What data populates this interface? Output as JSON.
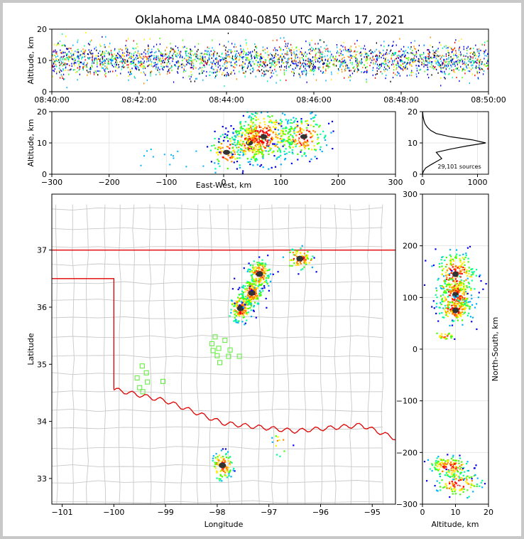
{
  "chart_data": [
    {
      "type": "heatmap",
      "title": "Oklahoma LMA 0840-0850 UTC March 17, 2021",
      "panel": "time-altitude",
      "xlabel": "",
      "ylabel": "Altitude, km",
      "x_ticks": [
        "08:40:00",
        "08:42:00",
        "08:44:00",
        "08:46:00",
        "08:48:00",
        "08:50:00"
      ],
      "y_ticks": [
        0,
        10,
        20
      ],
      "ylim": [
        0,
        20
      ],
      "typical_altitude_km": 10
    },
    {
      "type": "heatmap",
      "panel": "east-west-altitude",
      "xlabel": "East-West, km",
      "ylabel": "Altitude, km",
      "x_ticks": [
        -300,
        -200,
        -100,
        0,
        100,
        200,
        300
      ],
      "xlim": [
        -300,
        300
      ],
      "y_ticks": [
        0,
        10,
        20
      ],
      "ylim": [
        0,
        20
      ],
      "clusters": [
        {
          "x": 5,
          "z": 7
        },
        {
          "x": 45,
          "z": 10
        },
        {
          "x": 70,
          "z": 12
        },
        {
          "x": 140,
          "z": 12
        }
      ]
    },
    {
      "type": "line",
      "panel": "altitude-histogram",
      "annotation": "29,101 sources",
      "x_ticks": [
        0,
        1000
      ],
      "xlim": [
        0,
        1200
      ],
      "y_ticks": [
        0,
        10,
        20
      ],
      "ylim": [
        0,
        20
      ],
      "points": [
        [
          0,
          0
        ],
        [
          20,
          1
        ],
        [
          60,
          2
        ],
        [
          150,
          3
        ],
        [
          250,
          4
        ],
        [
          350,
          5
        ],
        [
          300,
          6
        ],
        [
          250,
          7
        ],
        [
          500,
          8
        ],
        [
          800,
          9
        ],
        [
          1150,
          10
        ],
        [
          900,
          11
        ],
        [
          500,
          12
        ],
        [
          250,
          13
        ],
        [
          150,
          14
        ],
        [
          90,
          15
        ],
        [
          50,
          16
        ],
        [
          30,
          17
        ],
        [
          15,
          18
        ],
        [
          8,
          19
        ],
        [
          4,
          20
        ]
      ]
    },
    {
      "type": "scatter",
      "panel": "plan-view-map",
      "xlabel": "Longitude",
      "ylabel": "Latitude",
      "x_ticks": [
        -101,
        -100,
        -99,
        -98,
        -97,
        -96,
        -95
      ],
      "xlim": [
        -101.2,
        -94.55
      ],
      "y_ticks": [
        33,
        34,
        35,
        36,
        37
      ],
      "ylim": [
        32.55,
        37.98
      ],
      "stations": [
        [
          -98.04,
          35.48
        ],
        [
          -98.1,
          35.36
        ],
        [
          -97.97,
          35.28
        ],
        [
          -98.08,
          35.24
        ],
        [
          -97.85,
          35.42
        ],
        [
          -97.75,
          35.25
        ],
        [
          -97.78,
          35.14
        ],
        [
          -97.57,
          35.14
        ],
        [
          -98.0,
          35.15
        ],
        [
          -97.95,
          35.03
        ],
        [
          -99.45,
          34.97
        ],
        [
          -99.37,
          34.85
        ],
        [
          -99.55,
          34.76
        ],
        [
          -99.35,
          34.69
        ],
        [
          -99.05,
          34.7
        ],
        [
          -99.5,
          34.59
        ],
        [
          -99.44,
          34.52
        ]
      ],
      "storm_cells": [
        {
          "lon": -97.55,
          "lat": 35.98
        },
        {
          "lon": -97.33,
          "lat": 36.25
        },
        {
          "lon": -97.18,
          "lat": 36.58
        },
        {
          "lon": -96.4,
          "lat": 36.85
        },
        {
          "lon": -97.9,
          "lat": 33.23
        },
        {
          "lon": -96.75,
          "lat": 33.62
        }
      ]
    },
    {
      "type": "heatmap",
      "panel": "altitude-north-south",
      "xlabel": "Altitude, km",
      "ylabel": "North-South, km",
      "x_ticks": [
        0,
        10,
        20
      ],
      "xlim": [
        0,
        20
      ],
      "y_ticks": [
        -300,
        -200,
        -100,
        0,
        100,
        200,
        300
      ],
      "ylim": [
        -300,
        300
      ],
      "clusters": [
        {
          "z": 10,
          "y": 145
        },
        {
          "z": 10,
          "y": 105
        },
        {
          "z": 10,
          "y": 75
        },
        {
          "z": 7,
          "y": 25
        },
        {
          "z": 8,
          "y": -228
        },
        {
          "z": 11,
          "y": -260
        }
      ]
    }
  ]
}
